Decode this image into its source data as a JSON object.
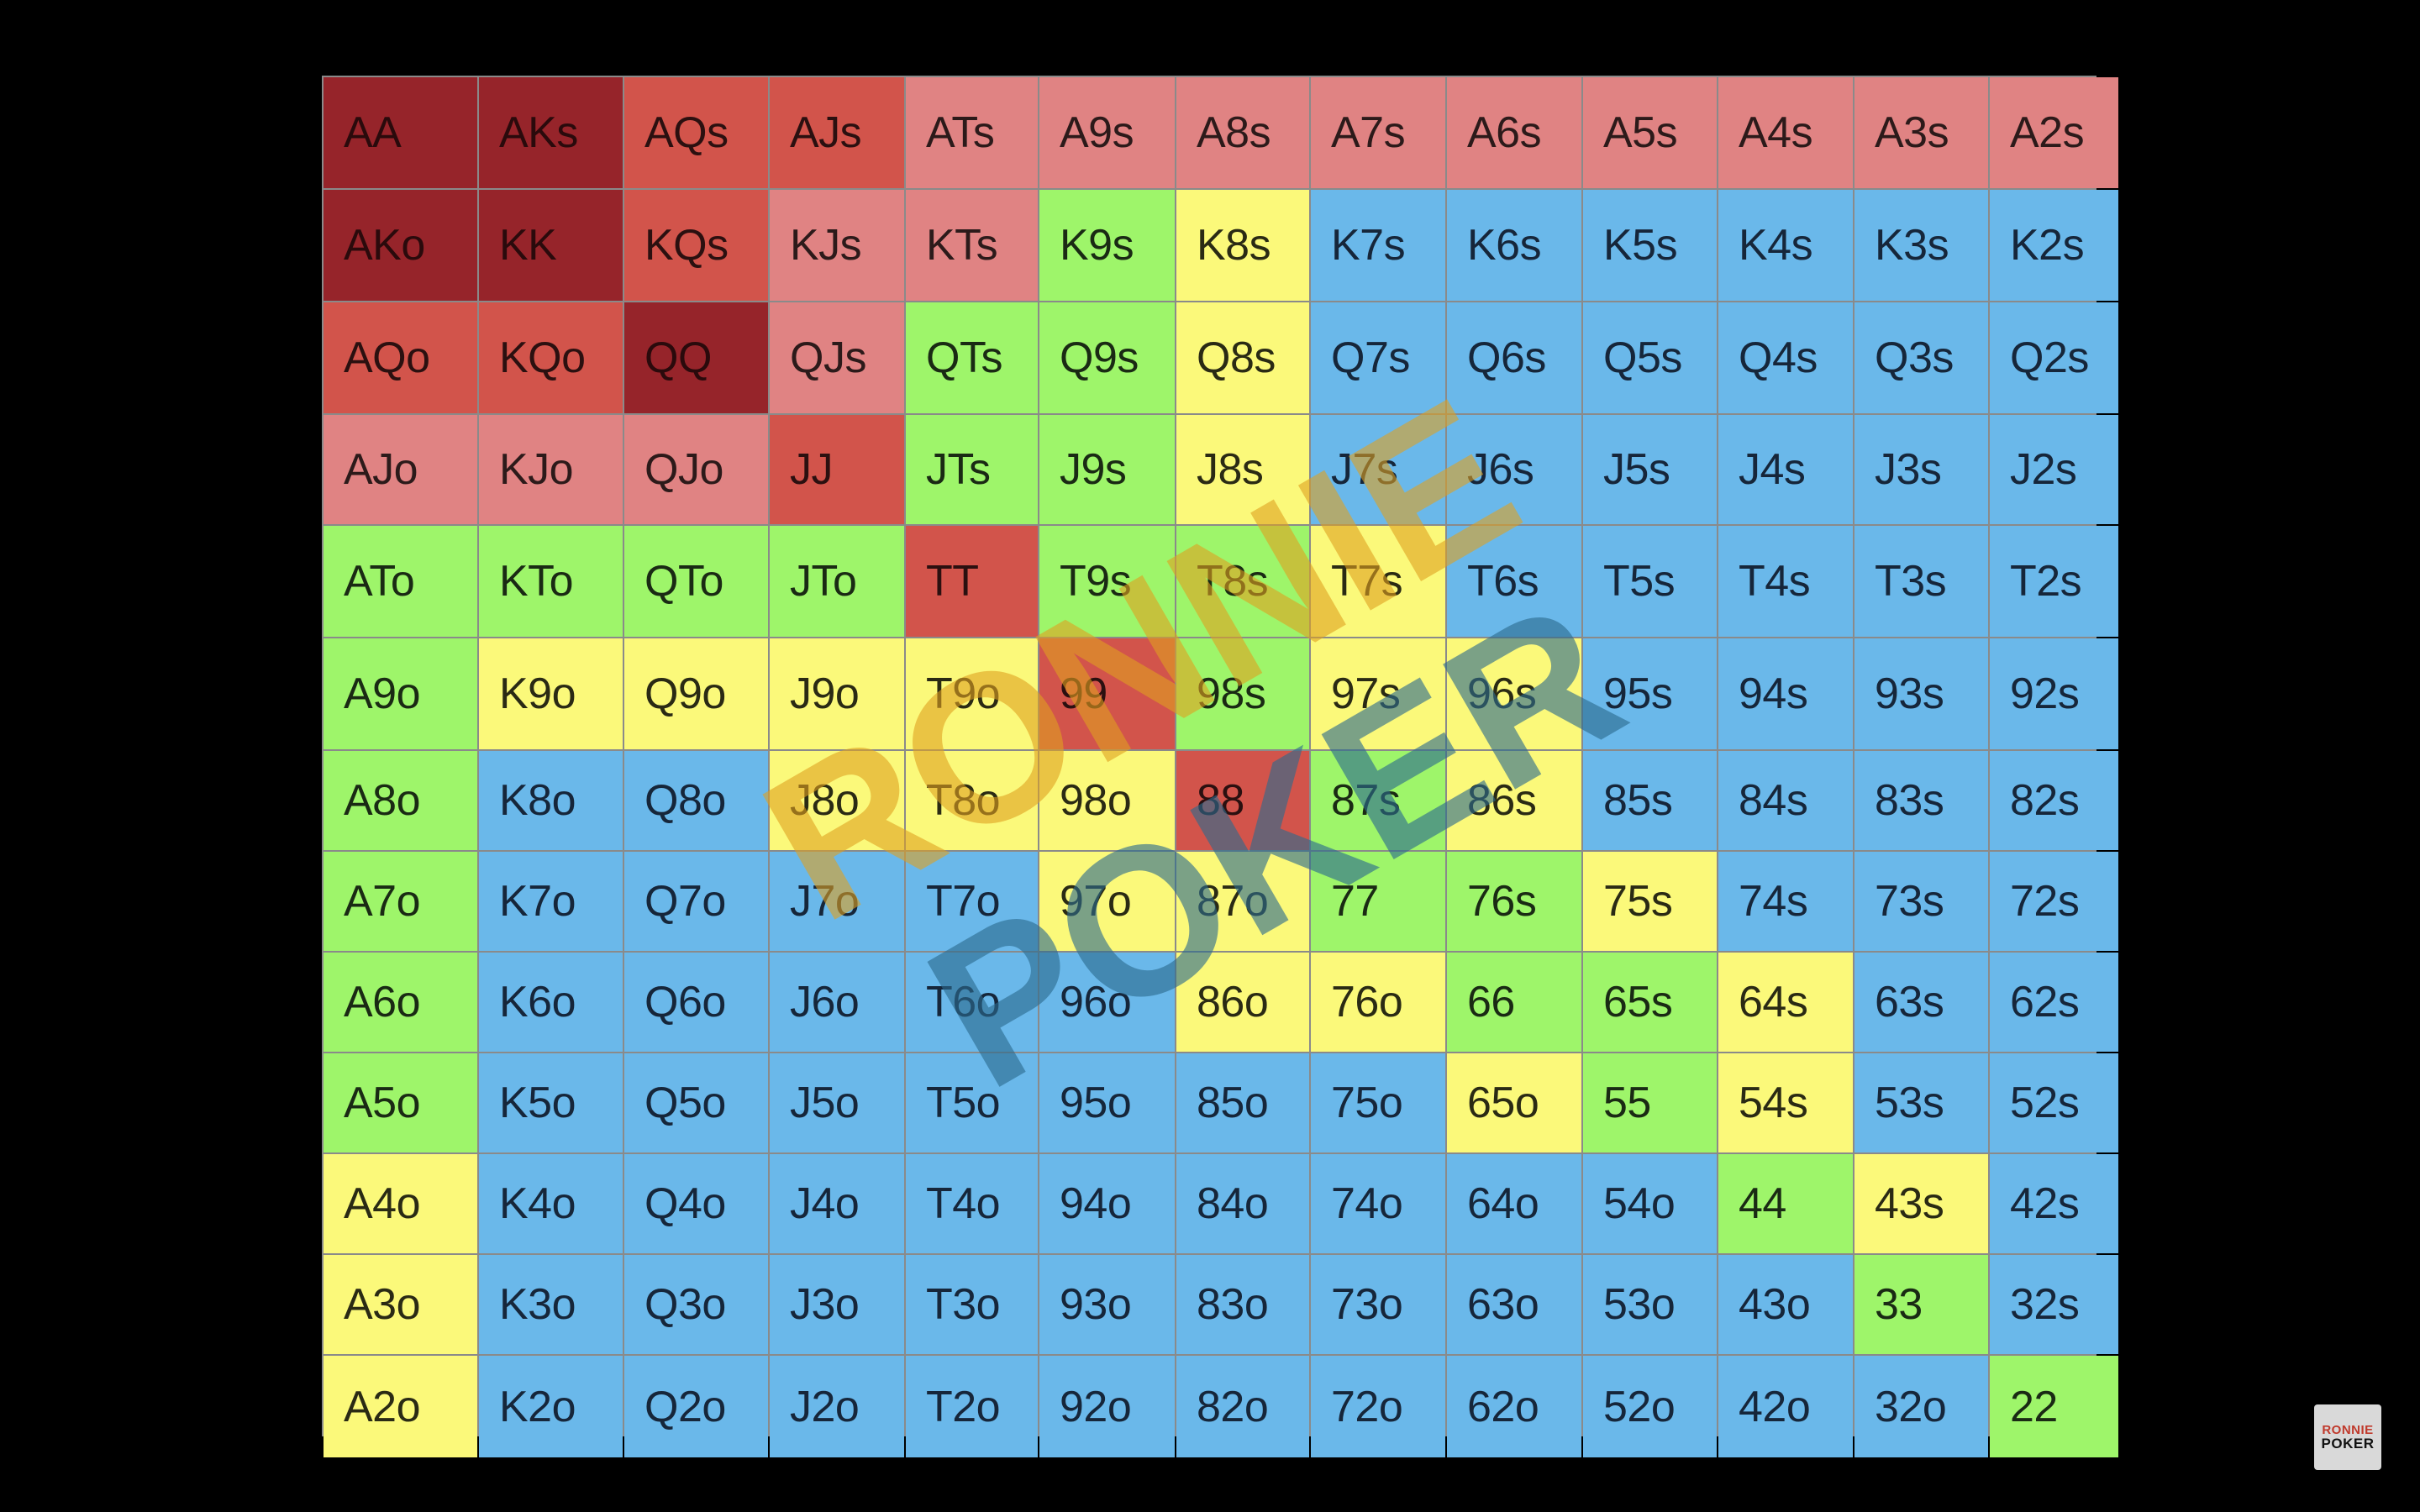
{
  "color_legend": {
    "darkred": "#96242a",
    "red": "#d2544b",
    "pink": "#e08383",
    "green": "#9ef56a",
    "yellow": "#fbf97a",
    "blue": "#6ab8ea"
  },
  "grid": [
    [
      {
        "h": "AA",
        "c": "darkred"
      },
      {
        "h": "AKs",
        "c": "darkred"
      },
      {
        "h": "AQs",
        "c": "red"
      },
      {
        "h": "AJs",
        "c": "red"
      },
      {
        "h": "ATs",
        "c": "pink"
      },
      {
        "h": "A9s",
        "c": "pink"
      },
      {
        "h": "A8s",
        "c": "pink"
      },
      {
        "h": "A7s",
        "c": "pink"
      },
      {
        "h": "A6s",
        "c": "pink"
      },
      {
        "h": "A5s",
        "c": "pink"
      },
      {
        "h": "A4s",
        "c": "pink"
      },
      {
        "h": "A3s",
        "c": "pink"
      },
      {
        "h": "A2s",
        "c": "pink"
      }
    ],
    [
      {
        "h": "AKo",
        "c": "darkred"
      },
      {
        "h": "KK",
        "c": "darkred"
      },
      {
        "h": "KQs",
        "c": "red"
      },
      {
        "h": "KJs",
        "c": "pink"
      },
      {
        "h": "KTs",
        "c": "pink"
      },
      {
        "h": "K9s",
        "c": "green"
      },
      {
        "h": "K8s",
        "c": "yellow"
      },
      {
        "h": "K7s",
        "c": "blue"
      },
      {
        "h": "K6s",
        "c": "blue"
      },
      {
        "h": "K5s",
        "c": "blue"
      },
      {
        "h": "K4s",
        "c": "blue"
      },
      {
        "h": "K3s",
        "c": "blue"
      },
      {
        "h": "K2s",
        "c": "blue"
      }
    ],
    [
      {
        "h": "AQo",
        "c": "red"
      },
      {
        "h": "KQo",
        "c": "red"
      },
      {
        "h": "QQ",
        "c": "darkred"
      },
      {
        "h": "QJs",
        "c": "pink"
      },
      {
        "h": "QTs",
        "c": "green"
      },
      {
        "h": "Q9s",
        "c": "green"
      },
      {
        "h": "Q8s",
        "c": "yellow"
      },
      {
        "h": "Q7s",
        "c": "blue"
      },
      {
        "h": "Q6s",
        "c": "blue"
      },
      {
        "h": "Q5s",
        "c": "blue"
      },
      {
        "h": "Q4s",
        "c": "blue"
      },
      {
        "h": "Q3s",
        "c": "blue"
      },
      {
        "h": "Q2s",
        "c": "blue"
      }
    ],
    [
      {
        "h": "AJo",
        "c": "pink"
      },
      {
        "h": "KJo",
        "c": "pink"
      },
      {
        "h": "QJo",
        "c": "pink"
      },
      {
        "h": "JJ",
        "c": "red"
      },
      {
        "h": "JTs",
        "c": "green"
      },
      {
        "h": "J9s",
        "c": "green"
      },
      {
        "h": "J8s",
        "c": "yellow"
      },
      {
        "h": "J7s",
        "c": "blue"
      },
      {
        "h": "J6s",
        "c": "blue"
      },
      {
        "h": "J5s",
        "c": "blue"
      },
      {
        "h": "J4s",
        "c": "blue"
      },
      {
        "h": "J3s",
        "c": "blue"
      },
      {
        "h": "J2s",
        "c": "blue"
      }
    ],
    [
      {
        "h": "ATo",
        "c": "green"
      },
      {
        "h": "KTo",
        "c": "green"
      },
      {
        "h": "QTo",
        "c": "green"
      },
      {
        "h": "JTo",
        "c": "green"
      },
      {
        "h": "TT",
        "c": "red"
      },
      {
        "h": "T9s",
        "c": "green"
      },
      {
        "h": "T8s",
        "c": "green"
      },
      {
        "h": "T7s",
        "c": "yellow"
      },
      {
        "h": "T6s",
        "c": "blue"
      },
      {
        "h": "T5s",
        "c": "blue"
      },
      {
        "h": "T4s",
        "c": "blue"
      },
      {
        "h": "T3s",
        "c": "blue"
      },
      {
        "h": "T2s",
        "c": "blue"
      }
    ],
    [
      {
        "h": "A9o",
        "c": "green"
      },
      {
        "h": "K9o",
        "c": "yellow"
      },
      {
        "h": "Q9o",
        "c": "yellow"
      },
      {
        "h": "J9o",
        "c": "yellow"
      },
      {
        "h": "T9o",
        "c": "yellow"
      },
      {
        "h": "99",
        "c": "red"
      },
      {
        "h": "98s",
        "c": "green"
      },
      {
        "h": "97s",
        "c": "yellow"
      },
      {
        "h": "96s",
        "c": "yellow"
      },
      {
        "h": "95s",
        "c": "blue"
      },
      {
        "h": "94s",
        "c": "blue"
      },
      {
        "h": "93s",
        "c": "blue"
      },
      {
        "h": "92s",
        "c": "blue"
      }
    ],
    [
      {
        "h": "A8o",
        "c": "green"
      },
      {
        "h": "K8o",
        "c": "blue"
      },
      {
        "h": "Q8o",
        "c": "blue"
      },
      {
        "h": "J8o",
        "c": "yellow"
      },
      {
        "h": "T8o",
        "c": "yellow"
      },
      {
        "h": "98o",
        "c": "yellow"
      },
      {
        "h": "88",
        "c": "red"
      },
      {
        "h": "87s",
        "c": "green"
      },
      {
        "h": "86s",
        "c": "yellow"
      },
      {
        "h": "85s",
        "c": "blue"
      },
      {
        "h": "84s",
        "c": "blue"
      },
      {
        "h": "83s",
        "c": "blue"
      },
      {
        "h": "82s",
        "c": "blue"
      }
    ],
    [
      {
        "h": "A7o",
        "c": "green"
      },
      {
        "h": "K7o",
        "c": "blue"
      },
      {
        "h": "Q7o",
        "c": "blue"
      },
      {
        "h": "J7o",
        "c": "blue"
      },
      {
        "h": "T7o",
        "c": "blue"
      },
      {
        "h": "97o",
        "c": "yellow"
      },
      {
        "h": "87o",
        "c": "yellow"
      },
      {
        "h": "77",
        "c": "green"
      },
      {
        "h": "76s",
        "c": "green"
      },
      {
        "h": "75s",
        "c": "yellow"
      },
      {
        "h": "74s",
        "c": "blue"
      },
      {
        "h": "73s",
        "c": "blue"
      },
      {
        "h": "72s",
        "c": "blue"
      }
    ],
    [
      {
        "h": "A6o",
        "c": "green"
      },
      {
        "h": "K6o",
        "c": "blue"
      },
      {
        "h": "Q6o",
        "c": "blue"
      },
      {
        "h": "J6o",
        "c": "blue"
      },
      {
        "h": "T6o",
        "c": "blue"
      },
      {
        "h": "96o",
        "c": "blue"
      },
      {
        "h": "86o",
        "c": "yellow"
      },
      {
        "h": "76o",
        "c": "yellow"
      },
      {
        "h": "66",
        "c": "green"
      },
      {
        "h": "65s",
        "c": "green"
      },
      {
        "h": "64s",
        "c": "yellow"
      },
      {
        "h": "63s",
        "c": "blue"
      },
      {
        "h": "62s",
        "c": "blue"
      }
    ],
    [
      {
        "h": "A5o",
        "c": "green"
      },
      {
        "h": "K5o",
        "c": "blue"
      },
      {
        "h": "Q5o",
        "c": "blue"
      },
      {
        "h": "J5o",
        "c": "blue"
      },
      {
        "h": "T5o",
        "c": "blue"
      },
      {
        "h": "95o",
        "c": "blue"
      },
      {
        "h": "85o",
        "c": "blue"
      },
      {
        "h": "75o",
        "c": "blue"
      },
      {
        "h": "65o",
        "c": "yellow"
      },
      {
        "h": "55",
        "c": "green"
      },
      {
        "h": "54s",
        "c": "yellow"
      },
      {
        "h": "53s",
        "c": "blue"
      },
      {
        "h": "52s",
        "c": "blue"
      }
    ],
    [
      {
        "h": "A4o",
        "c": "yellow"
      },
      {
        "h": "K4o",
        "c": "blue"
      },
      {
        "h": "Q4o",
        "c": "blue"
      },
      {
        "h": "J4o",
        "c": "blue"
      },
      {
        "h": "T4o",
        "c": "blue"
      },
      {
        "h": "94o",
        "c": "blue"
      },
      {
        "h": "84o",
        "c": "blue"
      },
      {
        "h": "74o",
        "c": "blue"
      },
      {
        "h": "64o",
        "c": "blue"
      },
      {
        "h": "54o",
        "c": "blue"
      },
      {
        "h": "44",
        "c": "green"
      },
      {
        "h": "43s",
        "c": "yellow"
      },
      {
        "h": "42s",
        "c": "blue"
      }
    ],
    [
      {
        "h": "A3o",
        "c": "yellow"
      },
      {
        "h": "K3o",
        "c": "blue"
      },
      {
        "h": "Q3o",
        "c": "blue"
      },
      {
        "h": "J3o",
        "c": "blue"
      },
      {
        "h": "T3o",
        "c": "blue"
      },
      {
        "h": "93o",
        "c": "blue"
      },
      {
        "h": "83o",
        "c": "blue"
      },
      {
        "h": "73o",
        "c": "blue"
      },
      {
        "h": "63o",
        "c": "blue"
      },
      {
        "h": "53o",
        "c": "blue"
      },
      {
        "h": "43o",
        "c": "blue"
      },
      {
        "h": "33",
        "c": "green"
      },
      {
        "h": "32s",
        "c": "blue"
      }
    ],
    [
      {
        "h": "A2o",
        "c": "yellow"
      },
      {
        "h": "K2o",
        "c": "blue"
      },
      {
        "h": "Q2o",
        "c": "blue"
      },
      {
        "h": "J2o",
        "c": "blue"
      },
      {
        "h": "T2o",
        "c": "blue"
      },
      {
        "h": "92o",
        "c": "blue"
      },
      {
        "h": "82o",
        "c": "blue"
      },
      {
        "h": "72o",
        "c": "blue"
      },
      {
        "h": "62o",
        "c": "blue"
      },
      {
        "h": "52o",
        "c": "blue"
      },
      {
        "h": "42o",
        "c": "blue"
      },
      {
        "h": "32o",
        "c": "blue"
      },
      {
        "h": "22",
        "c": "green"
      }
    ]
  ],
  "watermark": {
    "line1": "RONNIE",
    "line2": "POKER",
    "color_line1": "#e0a020",
    "color_line2": "#2c6a8e"
  },
  "logo": {
    "line1": "RONNIE",
    "line2": "POKER"
  }
}
